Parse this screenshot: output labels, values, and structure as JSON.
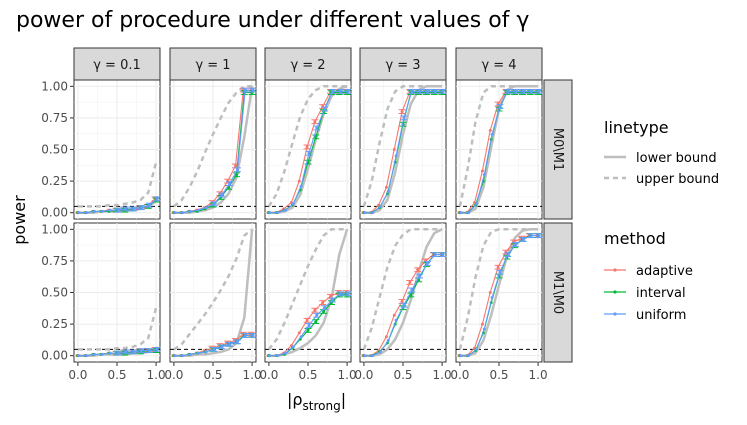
{
  "chart_data": {
    "type": "line",
    "title": "power of procedure under different values of γ",
    "xlabel": "|ρstrong|",
    "xlabel_main": "|ρ",
    "xlabel_sub": "strong",
    "xlabel_end": "|",
    "ylabel": "power",
    "xlim": [
      0,
      1
    ],
    "ylim": [
      0,
      1
    ],
    "x_ticks": [
      "0.0",
      "0.5",
      "1.0"
    ],
    "y_ticks": [
      "0.00",
      "0.25",
      "0.50",
      "0.75",
      "1.00"
    ],
    "alpha_line": 0.05,
    "columns": [
      "γ = 0.1",
      "γ = 1",
      "γ = 2",
      "γ = 3",
      "γ = 4"
    ],
    "rows": [
      "M0\\M1",
      "M1\\M0"
    ],
    "x_points": [
      0.0,
      0.1,
      0.2,
      0.3,
      0.4,
      0.5,
      0.6,
      0.7,
      0.8,
      0.9,
      1.0
    ],
    "colors": {
      "adaptive": "#F8766D",
      "interval": "#00BA38",
      "uniform": "#619CFF",
      "bound": "#bebebe"
    },
    "legend": {
      "linetype_title": "linetype",
      "linetype_items": [
        "lower bound",
        "upper bound"
      ],
      "method_title": "method",
      "method_items": [
        "adaptive",
        "interval",
        "uniform"
      ]
    },
    "panels": [
      [
        {
          "adaptive": [
            0.0,
            0.0,
            0.01,
            0.01,
            0.02,
            0.02,
            0.03,
            0.03,
            0.04,
            0.05,
            0.11
          ],
          "interval": [
            0.0,
            0.0,
            0.01,
            0.01,
            0.01,
            0.02,
            0.02,
            0.03,
            0.04,
            0.05,
            0.1
          ],
          "uniform": [
            0.0,
            0.0,
            0.01,
            0.01,
            0.02,
            0.02,
            0.03,
            0.03,
            0.04,
            0.06,
            0.11
          ],
          "lower": [
            0.0,
            0.0,
            0.0,
            0.01,
            0.01,
            0.01,
            0.02,
            0.02,
            0.03,
            0.05,
            0.09
          ],
          "upper": [
            0.05,
            0.05,
            0.05,
            0.05,
            0.06,
            0.06,
            0.07,
            0.08,
            0.1,
            0.16,
            0.4
          ]
        },
        {
          "adaptive": [
            0.0,
            0.0,
            0.01,
            0.02,
            0.04,
            0.08,
            0.15,
            0.25,
            0.37,
            0.97,
            0.97
          ],
          "interval": [
            0.0,
            0.0,
            0.01,
            0.01,
            0.03,
            0.06,
            0.12,
            0.2,
            0.3,
            0.95,
            0.95
          ],
          "uniform": [
            0.0,
            0.0,
            0.01,
            0.02,
            0.04,
            0.07,
            0.14,
            0.23,
            0.34,
            0.97,
            0.97
          ],
          "lower": [
            0.0,
            0.0,
            0.0,
            0.01,
            0.02,
            0.04,
            0.08,
            0.15,
            0.28,
            0.6,
            1.0
          ],
          "upper": [
            0.05,
            0.1,
            0.2,
            0.33,
            0.48,
            0.62,
            0.75,
            0.87,
            0.95,
            1.0,
            1.0
          ]
        },
        {
          "adaptive": [
            0.0,
            0.0,
            0.03,
            0.08,
            0.25,
            0.52,
            0.72,
            0.84,
            0.96,
            0.96,
            0.96
          ],
          "interval": [
            0.0,
            0.0,
            0.02,
            0.06,
            0.18,
            0.4,
            0.6,
            0.8,
            0.95,
            0.95,
            0.95
          ],
          "uniform": [
            0.0,
            0.0,
            0.02,
            0.07,
            0.21,
            0.47,
            0.67,
            0.82,
            0.96,
            0.96,
            0.96
          ],
          "lower": [
            0.0,
            0.0,
            0.01,
            0.04,
            0.14,
            0.35,
            0.58,
            0.78,
            0.92,
            0.98,
            1.0
          ],
          "upper": [
            0.05,
            0.15,
            0.33,
            0.55,
            0.76,
            0.9,
            0.97,
            1.0,
            1.0,
            1.0,
            1.0
          ]
        },
        {
          "adaptive": [
            0.0,
            0.0,
            0.06,
            0.2,
            0.5,
            0.8,
            0.96,
            0.96,
            0.96,
            0.96,
            0.96
          ],
          "interval": [
            0.0,
            0.0,
            0.04,
            0.15,
            0.4,
            0.7,
            0.95,
            0.95,
            0.95,
            0.95,
            0.95
          ],
          "uniform": [
            0.0,
            0.0,
            0.05,
            0.17,
            0.45,
            0.75,
            0.96,
            0.96,
            0.96,
            0.96,
            0.96
          ],
          "lower": [
            0.0,
            0.0,
            0.02,
            0.1,
            0.32,
            0.62,
            0.86,
            0.97,
            1.0,
            1.0,
            1.0
          ],
          "upper": [
            0.05,
            0.25,
            0.55,
            0.82,
            0.96,
            1.0,
            1.0,
            1.0,
            1.0,
            1.0,
            1.0
          ]
        },
        {
          "adaptive": [
            0.0,
            0.0,
            0.08,
            0.33,
            0.65,
            0.86,
            0.96,
            0.96,
            0.96,
            0.96,
            0.96
          ],
          "interval": [
            0.0,
            0.0,
            0.06,
            0.25,
            0.58,
            0.82,
            0.95,
            0.95,
            0.95,
            0.95,
            0.95
          ],
          "uniform": [
            0.0,
            0.0,
            0.07,
            0.3,
            0.62,
            0.84,
            0.96,
            0.96,
            0.96,
            0.96,
            0.96
          ],
          "lower": [
            0.0,
            0.0,
            0.03,
            0.2,
            0.52,
            0.82,
            0.97,
            1.0,
            1.0,
            1.0,
            1.0
          ],
          "upper": [
            0.05,
            0.35,
            0.72,
            0.95,
            1.0,
            1.0,
            1.0,
            1.0,
            1.0,
            1.0,
            1.0
          ]
        }
      ],
      [
        {
          "adaptive": [
            0.0,
            0.0,
            0.01,
            0.01,
            0.02,
            0.02,
            0.03,
            0.03,
            0.04,
            0.04,
            0.05
          ],
          "interval": [
            0.0,
            0.0,
            0.01,
            0.01,
            0.02,
            0.02,
            0.02,
            0.03,
            0.03,
            0.04,
            0.04
          ],
          "uniform": [
            0.0,
            0.0,
            0.01,
            0.01,
            0.02,
            0.02,
            0.03,
            0.03,
            0.04,
            0.04,
            0.05
          ],
          "lower": [
            0.0,
            0.0,
            0.0,
            0.01,
            0.01,
            0.01,
            0.01,
            0.02,
            0.02,
            0.03,
            0.04
          ],
          "upper": [
            0.05,
            0.05,
            0.05,
            0.05,
            0.05,
            0.06,
            0.06,
            0.07,
            0.09,
            0.14,
            0.38
          ]
        },
        {
          "adaptive": [
            0.0,
            0.0,
            0.01,
            0.02,
            0.04,
            0.06,
            0.08,
            0.1,
            0.12,
            0.17,
            0.17
          ],
          "interval": [
            0.0,
            0.0,
            0.01,
            0.02,
            0.03,
            0.05,
            0.07,
            0.09,
            0.11,
            0.16,
            0.16
          ],
          "uniform": [
            0.0,
            0.0,
            0.01,
            0.02,
            0.03,
            0.05,
            0.07,
            0.09,
            0.11,
            0.16,
            0.16
          ],
          "lower": [
            0.0,
            0.0,
            0.0,
            0.01,
            0.01,
            0.02,
            0.03,
            0.05,
            0.1,
            0.3,
            1.0
          ],
          "upper": [
            0.05,
            0.09,
            0.17,
            0.25,
            0.33,
            0.42,
            0.52,
            0.63,
            0.77,
            0.95,
            1.0
          ]
        },
        {
          "adaptive": [
            0.0,
            0.0,
            0.02,
            0.08,
            0.18,
            0.28,
            0.36,
            0.42,
            0.47,
            0.5,
            0.5
          ],
          "interval": [
            0.0,
            0.0,
            0.01,
            0.06,
            0.13,
            0.2,
            0.27,
            0.35,
            0.42,
            0.48,
            0.48
          ],
          "uniform": [
            0.0,
            0.0,
            0.02,
            0.07,
            0.15,
            0.24,
            0.32,
            0.38,
            0.44,
            0.49,
            0.49
          ],
          "lower": [
            0.0,
            0.0,
            0.01,
            0.03,
            0.06,
            0.1,
            0.16,
            0.26,
            0.45,
            0.8,
            1.0
          ],
          "upper": [
            0.05,
            0.13,
            0.26,
            0.41,
            0.56,
            0.71,
            0.84,
            0.95,
            1.0,
            1.0,
            1.0
          ]
        },
        {
          "adaptive": [
            0.0,
            0.0,
            0.04,
            0.15,
            0.32,
            0.43,
            0.58,
            0.68,
            0.75,
            0.8,
            0.8
          ],
          "interval": [
            0.0,
            0.0,
            0.03,
            0.1,
            0.25,
            0.38,
            0.48,
            0.6,
            0.72,
            0.8,
            0.8
          ],
          "uniform": [
            0.0,
            0.0,
            0.03,
            0.12,
            0.28,
            0.4,
            0.52,
            0.63,
            0.73,
            0.8,
            0.8
          ],
          "lower": [
            0.0,
            0.0,
            0.01,
            0.05,
            0.13,
            0.26,
            0.44,
            0.66,
            0.86,
            0.97,
            1.0
          ],
          "upper": [
            0.05,
            0.22,
            0.46,
            0.7,
            0.87,
            0.96,
            1.0,
            1.0,
            1.0,
            1.0,
            1.0
          ]
        },
        {
          "adaptive": [
            0.0,
            0.0,
            0.06,
            0.25,
            0.5,
            0.7,
            0.82,
            0.9,
            0.93,
            0.95,
            0.95
          ],
          "interval": [
            0.0,
            0.0,
            0.04,
            0.18,
            0.42,
            0.63,
            0.78,
            0.87,
            0.92,
            0.95,
            0.95
          ],
          "uniform": [
            0.0,
            0.0,
            0.05,
            0.21,
            0.46,
            0.66,
            0.8,
            0.88,
            0.92,
            0.95,
            0.95
          ],
          "lower": [
            0.0,
            0.0,
            0.02,
            0.12,
            0.32,
            0.56,
            0.78,
            0.93,
            0.99,
            1.0,
            1.0
          ],
          "upper": [
            0.05,
            0.3,
            0.62,
            0.87,
            0.98,
            1.0,
            1.0,
            1.0,
            1.0,
            1.0,
            1.0
          ]
        }
      ]
    ]
  }
}
